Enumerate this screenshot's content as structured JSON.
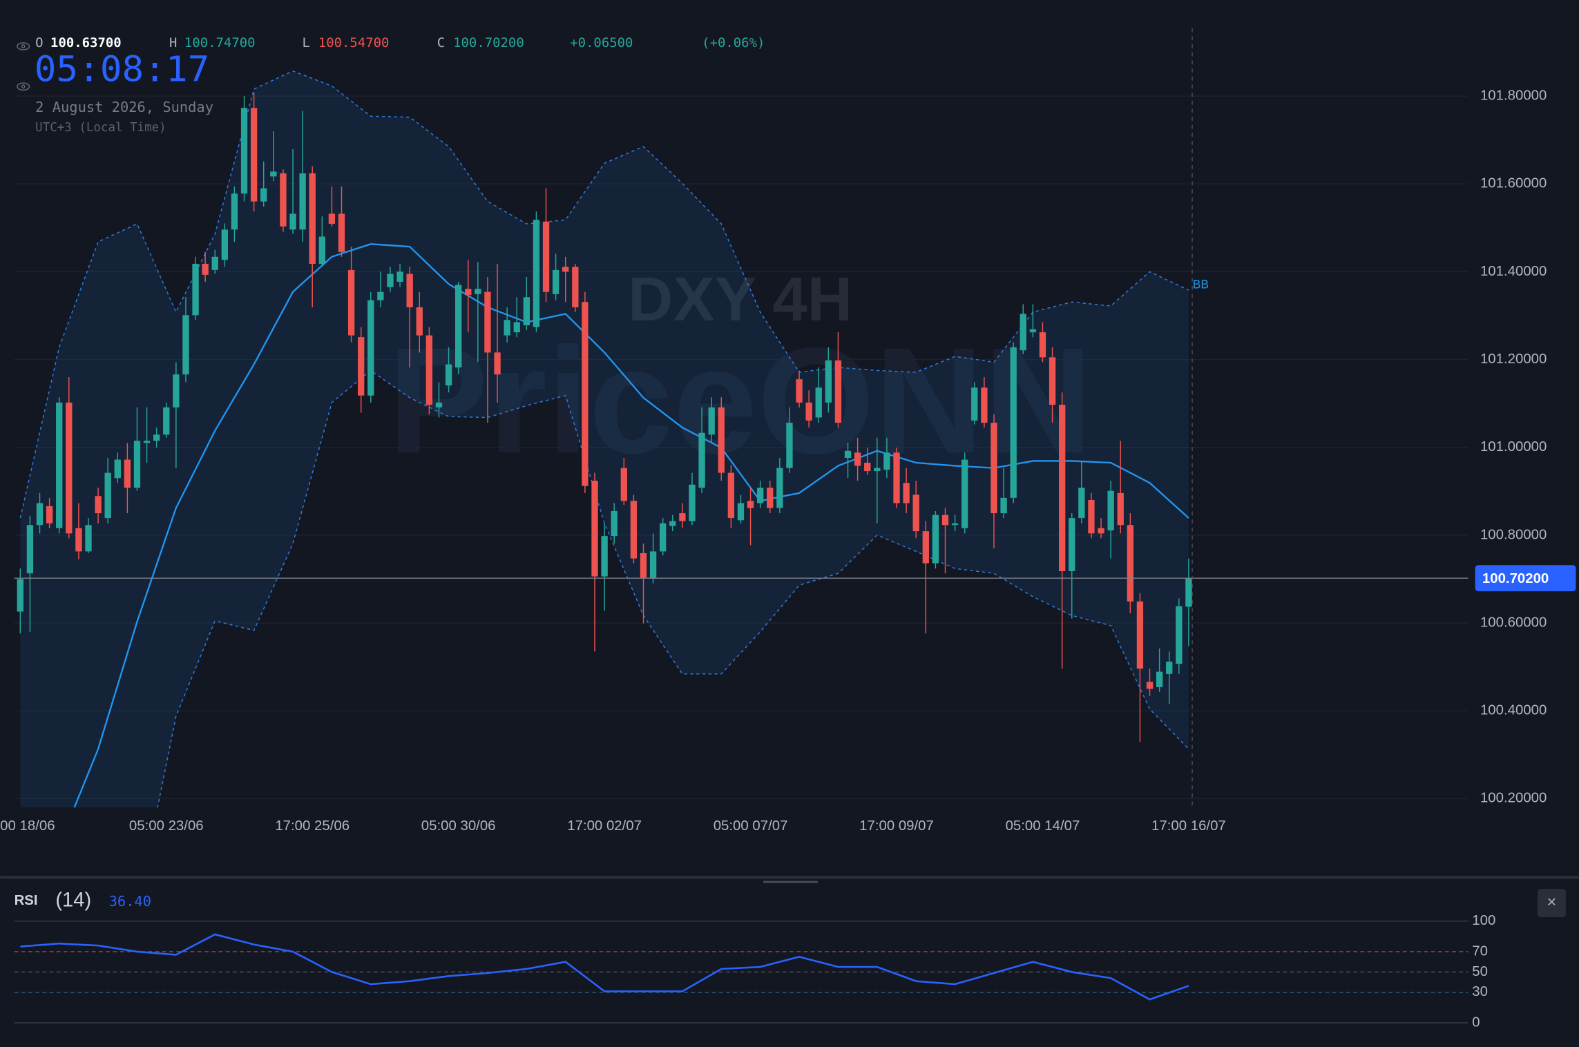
{
  "header": {
    "ohlc": [
      {
        "key": "O",
        "value": "100.63700"
      },
      {
        "key": "H",
        "value": "100.74700"
      },
      {
        "key": "L",
        "value": "100.54700"
      },
      {
        "key": "C",
        "value": "100.70200"
      }
    ],
    "change": "+0.06500",
    "change_pct": "(+0.06%)",
    "clock": "05:08:17",
    "date": "2 August 2026, Sunday",
    "timezone": "UTC+3 (Local Time)"
  },
  "watermark": {
    "symbol": "DXY 4H",
    "brand": "PriceONN"
  },
  "close_button": "×",
  "chart_data": [
    {
      "type": "candlestick",
      "xlim": [
        -0.62,
        148.7
      ],
      "ylim": [
        100.18,
        101.95
      ],
      "grid": true,
      "yticks": [
        {
          "value": 100.2,
          "label": "100.20000"
        },
        {
          "value": 100.4,
          "label": "100.40000"
        },
        {
          "value": 100.6,
          "label": "100.60000"
        },
        {
          "value": 100.8,
          "label": "100.80000"
        },
        {
          "value": 101.0,
          "label": "101.00000"
        },
        {
          "value": 101.2,
          "label": "101.20000"
        },
        {
          "value": 101.4,
          "label": "101.40000"
        },
        {
          "value": 101.6,
          "label": "101.60000"
        },
        {
          "value": 101.8,
          "label": "101.80000"
        }
      ],
      "xticks": [
        {
          "value": 0,
          "label": "00 18/06"
        },
        {
          "value": 15,
          "label": "05:00 23/06"
        },
        {
          "value": 30,
          "label": "17:00 25/06"
        },
        {
          "value": 45,
          "label": "05:00 30/06"
        },
        {
          "value": 60,
          "label": "17:00 02/07"
        },
        {
          "value": 75,
          "label": "05:00 07/07"
        },
        {
          "value": 90,
          "label": "17:00 09/07"
        },
        {
          "value": 105,
          "label": "05:00 14/07"
        },
        {
          "value": 120,
          "label": "17:00 16/07"
        }
      ],
      "up_color": "#26a69a",
      "down_color": "#ef5350",
      "candles": {
        "open": [
          100.626,
          100.713,
          100.823,
          100.866,
          100.816,
          101.102,
          100.816,
          100.763,
          100.889,
          100.839,
          100.93,
          100.972,
          100.908,
          101.01,
          101.015,
          101.029,
          101.091,
          101.166,
          101.301,
          101.418,
          101.404,
          101.427,
          101.496,
          101.578,
          101.773,
          101.56,
          101.617,
          101.624,
          101.496,
          101.496,
          101.624,
          101.418,
          101.532,
          101.532,
          101.404,
          101.251,
          101.118,
          101.335,
          101.365,
          101.377,
          101.395,
          101.319,
          101.255,
          101.091,
          101.141,
          101.182,
          101.361,
          101.349,
          101.354,
          101.216,
          101.255,
          101.262,
          101.278,
          101.274,
          101.514,
          101.349,
          101.411,
          101.411,
          101.331,
          100.924,
          100.706,
          100.798,
          100.953,
          100.878,
          100.759,
          100.702,
          100.763,
          100.821,
          100.85,
          100.832,
          100.908,
          101.029,
          101.091,
          100.942,
          100.834,
          100.878,
          100.873,
          100.908,
          100.862,
          100.953,
          101.155,
          101.102,
          101.068,
          101.102,
          101.198,
          100.976,
          100.988,
          100.965,
          100.946,
          100.949,
          100.988,
          100.919,
          100.892,
          100.809,
          100.736,
          100.846,
          100.823,
          100.816,
          101.061,
          101.136,
          101.056,
          100.85,
          100.885,
          101.221,
          101.262,
          101.262,
          101.205,
          101.097,
          100.718,
          100.839,
          100.88,
          100.816,
          100.811,
          100.896,
          100.823,
          100.649,
          100.466,
          100.454,
          100.484,
          100.507,
          100.637
        ],
        "high": [
          100.724,
          100.844,
          100.896,
          100.885,
          101.114,
          101.16,
          100.873,
          100.839,
          100.908,
          100.976,
          100.988,
          101.01,
          101.091,
          101.091,
          101.045,
          101.102,
          101.194,
          101.342,
          101.434,
          101.445,
          101.45,
          101.51,
          101.594,
          101.8,
          101.807,
          101.651,
          101.72,
          101.633,
          101.679,
          101.766,
          101.64,
          101.526,
          101.594,
          101.594,
          101.457,
          101.274,
          101.354,
          101.4,
          101.411,
          101.418,
          101.411,
          101.354,
          101.274,
          101.148,
          101.228,
          101.377,
          101.427,
          101.422,
          101.388,
          101.418,
          101.319,
          101.342,
          101.388,
          101.537,
          101.59,
          101.441,
          101.434,
          101.418,
          101.354,
          100.942,
          100.827,
          100.873,
          100.976,
          100.892,
          100.781,
          100.804,
          100.839,
          100.846,
          100.873,
          100.942,
          101.091,
          101.114,
          101.114,
          100.96,
          100.892,
          100.908,
          100.924,
          100.924,
          100.976,
          101.091,
          101.175,
          101.13,
          101.182,
          101.228,
          101.262,
          101.01,
          101.022,
          100.999,
          101.022,
          101.022,
          100.999,
          100.953,
          100.924,
          100.832,
          100.855,
          100.862,
          100.846,
          100.988,
          101.148,
          101.16,
          101.075,
          100.953,
          101.239,
          101.326,
          101.326,
          101.285,
          101.228,
          101.125,
          100.85,
          100.969,
          100.896,
          100.839,
          100.924,
          101.015,
          100.85,
          100.668,
          100.496,
          100.542,
          100.535,
          100.656,
          100.747
        ],
        "low": [
          100.576,
          100.58,
          100.804,
          100.816,
          100.804,
          100.793,
          100.745,
          100.759,
          100.827,
          100.827,
          100.919,
          100.85,
          100.901,
          100.965,
          100.999,
          101.022,
          100.953,
          101.148,
          101.29,
          101.377,
          101.395,
          101.411,
          101.468,
          101.56,
          101.537,
          101.548,
          101.606,
          101.491,
          101.486,
          101.468,
          101.319,
          101.411,
          101.503,
          101.434,
          101.239,
          101.079,
          101.102,
          101.319,
          101.354,
          101.365,
          101.182,
          101.216,
          101.075,
          101.068,
          101.125,
          101.166,
          101.262,
          101.194,
          101.056,
          101.102,
          101.239,
          101.251,
          101.267,
          101.262,
          101.331,
          101.335,
          101.331,
          101.308,
          100.896,
          100.535,
          100.628,
          100.781,
          100.869,
          100.736,
          100.599,
          100.69,
          100.754,
          100.809,
          100.816,
          100.823,
          100.896,
          101.01,
          100.924,
          100.816,
          100.827,
          100.777,
          100.862,
          100.85,
          100.85,
          100.942,
          101.091,
          101.045,
          101.056,
          101.079,
          101.045,
          100.93,
          100.924,
          100.937,
          100.827,
          100.93,
          100.862,
          100.85,
          100.793,
          100.576,
          100.724,
          100.713,
          100.809,
          100.804,
          101.052,
          101.045,
          100.77,
          100.839,
          100.873,
          101.212,
          101.251,
          101.194,
          101.056,
          100.496,
          100.61,
          100.827,
          100.793,
          100.793,
          100.747,
          100.804,
          100.622,
          100.329,
          100.434,
          100.443,
          100.416,
          100.484,
          100.547
        ],
        "close": [
          100.7,
          100.823,
          100.873,
          100.827,
          101.102,
          100.804,
          100.763,
          100.823,
          100.85,
          100.942,
          100.972,
          100.908,
          101.015,
          101.015,
          101.029,
          101.091,
          101.166,
          101.301,
          101.418,
          101.393,
          101.434,
          101.496,
          101.578,
          101.773,
          101.56,
          101.59,
          101.628,
          101.503,
          101.532,
          101.624,
          101.418,
          101.48,
          101.509,
          101.445,
          101.255,
          101.118,
          101.335,
          101.354,
          101.395,
          101.4,
          101.319,
          101.255,
          101.097,
          101.102,
          101.189,
          101.37,
          101.347,
          101.361,
          101.216,
          101.166,
          101.29,
          101.285,
          101.342,
          101.518,
          101.354,
          101.404,
          101.4,
          101.319,
          100.912,
          100.706,
          100.798,
          100.855,
          100.878,
          100.747,
          100.702,
          100.763,
          100.827,
          100.832,
          100.832,
          100.915,
          101.033,
          101.091,
          100.942,
          100.839,
          100.873,
          100.862,
          100.908,
          100.862,
          100.953,
          101.056,
          101.102,
          101.061,
          101.136,
          101.198,
          101.056,
          100.992,
          100.958,
          100.946,
          100.953,
          100.988,
          100.873,
          100.873,
          100.809,
          100.736,
          100.846,
          100.823,
          100.827,
          100.972,
          101.136,
          101.056,
          100.85,
          100.885,
          101.228,
          101.304,
          101.269,
          101.205,
          101.097,
          100.718,
          100.839,
          100.908,
          100.804,
          100.804,
          100.901,
          100.823,
          100.649,
          100.496,
          100.45,
          100.489,
          100.512,
          100.638,
          100.702
        ]
      },
      "last_price": 100.702,
      "last_price_label": "100.70200",
      "last_price_color": "#2962ff",
      "bands": {
        "name": "BB",
        "color": "#2f7de1",
        "middle_color": "#2196f3",
        "x": [
          0,
          4,
          8,
          12,
          16,
          20,
          24,
          28,
          32,
          36,
          40,
          44,
          48,
          52,
          56,
          60,
          64,
          68,
          72,
          76,
          80,
          84,
          88,
          92,
          96,
          100,
          104,
          108,
          112,
          116,
          120
        ],
        "upper": [
          100.839,
          101.228,
          101.468,
          101.509,
          101.308,
          101.486,
          101.816,
          101.857,
          101.823,
          101.754,
          101.752,
          101.685,
          101.56,
          101.509,
          101.518,
          101.647,
          101.685,
          101.601,
          101.509,
          101.308,
          101.171,
          101.182,
          101.175,
          101.171,
          101.207,
          101.194,
          101.308,
          101.331,
          101.322,
          101.4,
          101.358
        ],
        "middle": [
          null,
          100.095,
          100.313,
          100.603,
          100.862,
          101.038,
          101.189,
          101.354,
          101.434,
          101.463,
          101.457,
          101.372,
          101.319,
          101.285,
          101.304,
          101.216,
          101.113,
          101.045,
          100.999,
          100.878,
          100.896,
          100.958,
          100.992,
          100.965,
          100.958,
          100.953,
          100.969,
          100.969,
          100.965,
          100.919,
          100.839
        ],
        "lower": [
          null,
          null,
          null,
          99.95,
          100.388,
          100.605,
          100.583,
          100.781,
          101.102,
          101.175,
          101.113,
          101.07,
          101.068,
          101.095,
          101.118,
          100.827,
          100.617,
          100.484,
          100.484,
          100.58,
          100.686,
          100.713,
          100.8,
          100.763,
          100.724,
          100.713,
          100.66,
          100.617,
          100.594,
          100.404,
          100.313
        ]
      }
    },
    {
      "type": "line",
      "title": "RSI",
      "subtitle": "(14)",
      "current": 36.4,
      "current_label": "36.40",
      "color": "#2962ff",
      "xlim": [
        -0.62,
        148.7
      ],
      "ylim": [
        0,
        100
      ],
      "yticks": [
        0,
        30,
        50,
        70,
        100
      ],
      "ytick_colors": [
        "#363a45",
        "#2c5d7a",
        "#4a4e59",
        "#a8434a",
        "#363a45"
      ],
      "x": [
        0,
        4,
        8,
        12,
        16,
        20,
        24,
        28,
        32,
        36,
        40,
        44,
        48,
        52,
        56,
        60,
        64,
        68,
        72,
        76,
        80,
        84,
        88,
        92,
        96,
        100,
        104,
        108,
        112,
        116,
        120
      ],
      "values": [
        75,
        78,
        76,
        70,
        67,
        87,
        77,
        70,
        50,
        38,
        41,
        46,
        49,
        53,
        60,
        31,
        31,
        31,
        53,
        55,
        65,
        55,
        55,
        41,
        38,
        49,
        60,
        50,
        44,
        23,
        36.4
      ]
    }
  ]
}
